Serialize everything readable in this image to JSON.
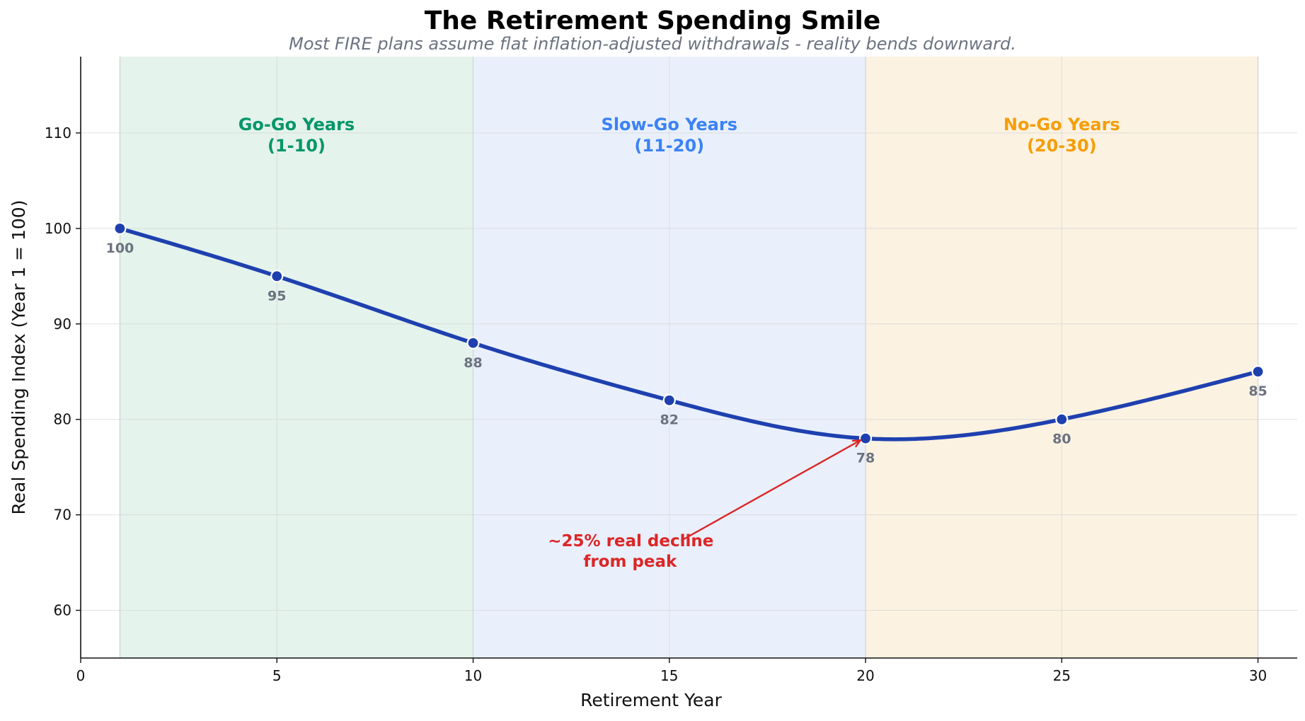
{
  "chart_data": {
    "type": "line",
    "title": "The Retirement Spending Smile",
    "subtitle": "Most FIRE plans assume flat inflation-adjusted withdrawals - reality bends downward.",
    "xlabel": "Retirement Year",
    "ylabel": "Real Spending Index (Year 1 = 100)",
    "xlim": [
      0,
      31
    ],
    "ylim": [
      55,
      118
    ],
    "xticks": [
      0,
      5,
      10,
      15,
      20,
      25,
      30
    ],
    "yticks": [
      60,
      70,
      80,
      90,
      100,
      110
    ],
    "grid": true,
    "series": [
      {
        "x": [
          1,
          5,
          10,
          15,
          20,
          25,
          30
        ],
        "values": [
          100,
          95,
          88,
          82,
          78,
          80,
          85
        ],
        "point_labels": [
          "100",
          "95",
          "88",
          "82",
          "78",
          "80",
          "85"
        ],
        "color": "#1e40af"
      }
    ],
    "phases": [
      {
        "line1": "Go-Go Years",
        "line2": "(1-10)",
        "x_start": 1,
        "x_end": 10,
        "color": "#059669",
        "fill": "#e4f3ec"
      },
      {
        "line1": "Slow-Go Years",
        "line2": "(11-20)",
        "x_start": 10,
        "x_end": 20,
        "color": "#3b82f6",
        "fill": "#e9f0fc"
      },
      {
        "line1": "No-Go Years",
        "line2": "(20-30)",
        "x_start": 20,
        "x_end": 30,
        "color": "#f59e0b",
        "fill": "#fbf2e1"
      }
    ],
    "annotation": {
      "line1": "~25% real decline",
      "line2": "from peak",
      "points_to": {
        "x": 20,
        "y": 78
      },
      "text_at": {
        "x": 14,
        "y": 66.5
      },
      "color": "#dc2626"
    }
  }
}
